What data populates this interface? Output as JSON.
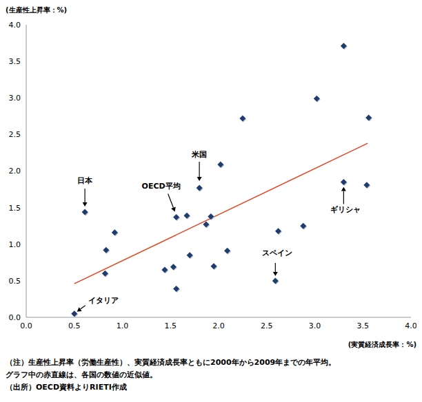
{
  "chart_data": {
    "type": "scatter",
    "y_label": "(生産性上昇率：%)",
    "x_label": "(実質経済成長率：%)",
    "color": "#1f3c6e",
    "marker": "diamond",
    "grid": false,
    "x": [
      0.5,
      0.61,
      0.83,
      0.82,
      0.92,
      1.44,
      1.53,
      1.56,
      1.56,
      1.67,
      1.7,
      1.8,
      1.87,
      1.92,
      1.95,
      2.02,
      2.09,
      2.25,
      2.59,
      2.62,
      2.88,
      3.02,
      3.3,
      3.3,
      3.54,
      3.56
    ],
    "values": [
      0.05,
      1.44,
      0.92,
      0.6,
      1.16,
      0.65,
      0.69,
      0.39,
      1.37,
      1.39,
      0.85,
      1.77,
      1.27,
      1.38,
      0.7,
      2.09,
      0.91,
      2.72,
      0.5,
      1.18,
      1.25,
      2.99,
      3.71,
      1.85,
      1.81,
      2.73
    ],
    "xlim": [
      0,
      4
    ],
    "ylim": [
      0,
      4
    ],
    "xticks": [
      {
        "value": 0,
        "label": "0.0"
      },
      {
        "value": 0.5,
        "label": "0.5"
      },
      {
        "value": 1,
        "label": "1.0"
      },
      {
        "value": 1.5,
        "label": "1.5"
      },
      {
        "value": 2,
        "label": "2.0"
      },
      {
        "value": 2.5,
        "label": "2.5"
      },
      {
        "value": 3,
        "label": "3.0"
      },
      {
        "value": 3.5,
        "label": "3.5"
      },
      {
        "value": 4,
        "label": "4.0"
      }
    ],
    "yticks": [
      {
        "value": 0,
        "label": "0.0"
      },
      {
        "value": 0.5,
        "label": "0.5"
      },
      {
        "value": 1,
        "label": "1.0"
      },
      {
        "value": 1.5,
        "label": "1.5"
      },
      {
        "value": 2,
        "label": "2.0"
      },
      {
        "value": 2.5,
        "label": "2.5"
      },
      {
        "value": 3,
        "label": "3.0"
      },
      {
        "value": 3.5,
        "label": "3.5"
      },
      {
        "value": 4,
        "label": "4.0"
      }
    ],
    "trend_line": {
      "x": [
        0.5,
        3.55
      ],
      "y": [
        0.46,
        2.38
      ],
      "color": "#e8401c"
    },
    "annotations": [
      {
        "text": "日本",
        "x": 0.61,
        "y": 1.44
      },
      {
        "text": "米国",
        "x": 1.8,
        "y": 1.77
      },
      {
        "text": "OECD平均",
        "x": 1.56,
        "y": 1.37
      },
      {
        "text": "ギリシャ",
        "x": 3.3,
        "y": 1.85
      },
      {
        "text": "スペイン",
        "x": 2.59,
        "y": 0.5
      },
      {
        "text": "イタリア",
        "x": 0.5,
        "y": 0.05
      }
    ],
    "notes": [
      "（注）生産性上昇率（労働生産性）、実質経済成長率ともに2000年から2009年までの年平均。",
      "グラフ中の赤直線は、各国の数値の近似値。",
      "（出所）OECD資料よりRIETI作成"
    ]
  }
}
